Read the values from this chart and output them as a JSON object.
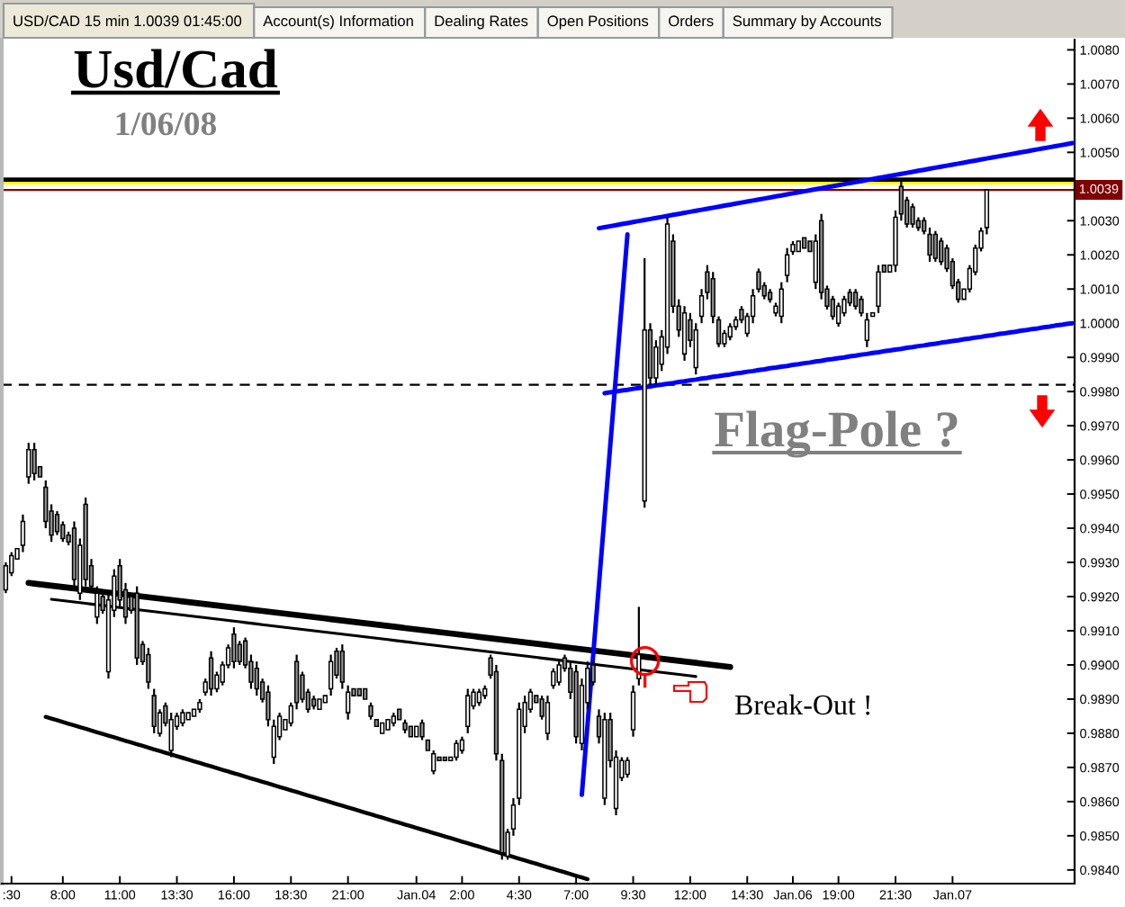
{
  "chart_data": {
    "type": "candlestick",
    "title": "Usd/Cad",
    "subtitle": "1/06/08",
    "annotations": [
      "USD/CAD 15 min 1.0039 01:45:00",
      "Account(s) Information",
      "Dealing Rates",
      "Open Positions",
      "Orders",
      "Summary by Accounts",
      "Flag-Pole ?",
      "Break-Out !"
    ],
    "categories": [
      null,
      ":30",
      null,
      null,
      null,
      null,
      null,
      null,
      null,
      null,
      "8:00",
      null,
      null,
      null,
      null,
      null,
      null,
      null,
      null,
      null,
      "11:00",
      null,
      null,
      null,
      null,
      null,
      null,
      null,
      null,
      null,
      "13:30",
      null,
      null,
      null,
      null,
      null,
      null,
      null,
      null,
      null,
      "16:00",
      null,
      null,
      null,
      null,
      null,
      null,
      null,
      null,
      null,
      "18:30",
      null,
      null,
      null,
      null,
      null,
      null,
      null,
      null,
      null,
      "21:00",
      null,
      null,
      null,
      null,
      null,
      null,
      null,
      null,
      null,
      null,
      null,
      "Jan.04",
      null,
      null,
      null,
      null,
      null,
      null,
      null,
      "2:00",
      null,
      null,
      null,
      null,
      null,
      null,
      null,
      null,
      null,
      "4:30",
      null,
      null,
      null,
      null,
      null,
      null,
      null,
      null,
      null,
      "7:00",
      null,
      null,
      null,
      null,
      null,
      null,
      null,
      null,
      null,
      "9:30",
      null,
      null,
      null,
      null,
      null,
      null,
      null,
      null,
      null,
      "12:00",
      null,
      null,
      null,
      null,
      null,
      null,
      null,
      null,
      null,
      "14:30",
      null,
      null,
      null,
      null,
      null,
      null,
      null,
      "Jan.06",
      null,
      null,
      null,
      null,
      null,
      null,
      null,
      "19:00",
      null,
      null,
      null,
      null,
      null,
      null,
      null,
      null,
      null,
      "21:30",
      null,
      null,
      null,
      null,
      null,
      null,
      null,
      null,
      null,
      "Jan.07",
      null,
      null,
      null,
      null,
      null,
      null,
      null,
      null,
      null,
      null,
      null,
      null,
      null,
      null,
      null,
      null,
      null,
      null,
      null,
      null,
      null
    ],
    "ohlc": [
      [
        0.9922,
        0.993,
        0.9921,
        0.9929
      ],
      [
        0.9927,
        0.9933,
        0.9926,
        0.9932
      ],
      [
        0.9931,
        0.9934,
        0.9931,
        0.9934
      ],
      [
        0.9935,
        0.9944,
        0.9933,
        0.9942
      ],
      [
        0.9955,
        0.9965,
        0.9953,
        0.9963
      ],
      [
        0.9963,
        0.9965,
        0.9954,
        0.9956
      ],
      [
        0.9958,
        0.9958,
        0.9955,
        0.9955
      ],
      [
        0.9952,
        0.9954,
        0.994,
        0.9942
      ],
      [
        0.9945,
        0.9947,
        0.9936,
        0.9938
      ],
      [
        0.9944,
        0.9945,
        0.9938,
        0.9939
      ],
      [
        0.9941,
        0.9942,
        0.9936,
        0.9937
      ],
      [
        0.9938,
        0.9939,
        0.9935,
        0.9936
      ],
      [
        0.994,
        0.9942,
        0.9923,
        0.9925
      ],
      [
        0.9921,
        0.9937,
        0.9919,
        0.9935
      ],
      [
        0.9947,
        0.9949,
        0.9923,
        0.9925
      ],
      [
        0.9929,
        0.9931,
        0.9921,
        0.9923
      ],
      [
        0.9914,
        0.9923,
        0.9912,
        0.9921
      ],
      [
        0.992,
        0.9921,
        0.9915,
        0.9916
      ],
      [
        0.9898,
        0.9921,
        0.9896,
        0.9919
      ],
      [
        0.9916,
        0.9928,
        0.9914,
        0.9926
      ],
      [
        0.9929,
        0.9931,
        0.9917,
        0.9919
      ],
      [
        0.9922,
        0.9924,
        0.9912,
        0.9914
      ],
      [
        0.992,
        0.9921,
        0.9915,
        0.9916
      ],
      [
        0.9921,
        0.9923,
        0.99,
        0.9902
      ],
      [
        0.9906,
        0.9907,
        0.99,
        0.9901
      ],
      [
        0.9903,
        0.9905,
        0.9893,
        0.9895
      ],
      [
        0.9891,
        0.9893,
        0.988,
        0.9882
      ],
      [
        0.988,
        0.9887,
        0.9879,
        0.9886
      ],
      [
        0.9888,
        0.9889,
        0.9882,
        0.9883
      ],
      [
        0.9875,
        0.9886,
        0.9873,
        0.9884
      ],
      [
        0.9882,
        0.9886,
        0.9881,
        0.9885
      ],
      [
        0.9883,
        0.9887,
        0.9882,
        0.9886
      ],
      [
        0.9884,
        0.9886,
        0.9884,
        0.9886
      ],
      [
        0.9885,
        0.9887,
        0.9885,
        0.9887
      ],
      [
        0.9887,
        0.989,
        0.9886,
        0.9889
      ],
      [
        0.9892,
        0.9896,
        0.9891,
        0.9895
      ],
      [
        0.9902,
        0.9904,
        0.9891,
        0.9893
      ],
      [
        0.9893,
        0.9898,
        0.9892,
        0.9897
      ],
      [
        0.9895,
        0.9901,
        0.9894,
        0.99
      ],
      [
        0.99,
        0.9906,
        0.9899,
        0.9905
      ],
      [
        0.9909,
        0.9911,
        0.9899,
        0.9901
      ],
      [
        0.9906,
        0.9907,
        0.99,
        0.9901
      ],
      [
        0.9907,
        0.9908,
        0.9899,
        0.99
      ],
      [
        0.9901,
        0.9903,
        0.9893,
        0.9895
      ],
      [
        0.9899,
        0.9901,
        0.9891,
        0.9893
      ],
      [
        0.9895,
        0.9896,
        0.9889,
        0.989
      ],
      [
        0.9892,
        0.9894,
        0.9882,
        0.9884
      ],
      [
        0.9873,
        0.9884,
        0.9871,
        0.9882
      ],
      [
        0.9879,
        0.9886,
        0.9878,
        0.9885
      ],
      [
        0.9881,
        0.9884,
        0.9881,
        0.9884
      ],
      [
        0.9883,
        0.9889,
        0.9882,
        0.9888
      ],
      [
        0.9901,
        0.9903,
        0.9887,
        0.9889
      ],
      [
        0.9897,
        0.9898,
        0.9889,
        0.989
      ],
      [
        0.9892,
        0.9893,
        0.9886,
        0.9887
      ],
      [
        0.989,
        0.9891,
        0.9887,
        0.9888
      ],
      [
        0.9887,
        0.989,
        0.9887,
        0.989
      ],
      [
        0.9889,
        0.9891,
        0.9889,
        0.9891
      ],
      [
        0.9893,
        0.9903,
        0.9891,
        0.9901
      ],
      [
        0.9904,
        0.9905,
        0.9896,
        0.9897
      ],
      [
        0.9904,
        0.9906,
        0.9893,
        0.9895
      ],
      [
        0.9886,
        0.9894,
        0.9884,
        0.9892
      ],
      [
        0.9893,
        0.9893,
        0.9891,
        0.9891
      ],
      [
        0.9893,
        0.9893,
        0.9891,
        0.9891
      ],
      [
        0.9893,
        0.9893,
        0.989,
        0.989
      ],
      [
        0.9888,
        0.9889,
        0.9884,
        0.9885
      ],
      [
        0.9884,
        0.9884,
        0.9882,
        0.9882
      ],
      [
        0.988,
        0.9883,
        0.988,
        0.9883
      ],
      [
        0.9881,
        0.9884,
        0.9881,
        0.9884
      ],
      [
        0.9883,
        0.9886,
        0.9882,
        0.9885
      ],
      [
        0.9887,
        0.9887,
        0.9884,
        0.9884
      ],
      [
        0.9883,
        0.9884,
        0.988,
        0.9881
      ],
      [
        0.9882,
        0.9882,
        0.9879,
        0.9879
      ],
      [
        0.9879,
        0.9882,
        0.9879,
        0.9882
      ],
      [
        0.9883,
        0.9884,
        0.9878,
        0.9879
      ],
      [
        0.9878,
        0.9878,
        0.9875,
        0.9875
      ],
      [
        0.9869,
        0.9875,
        0.9868,
        0.9874
      ],
      [
        0.9873,
        0.9873,
        0.9872,
        0.9872
      ],
      [
        0.9873,
        0.9873,
        0.9872,
        0.9872
      ],
      [
        0.9872,
        0.9873,
        0.9872,
        0.9873
      ],
      [
        0.9873,
        0.9878,
        0.9872,
        0.9877
      ],
      [
        0.9875,
        0.9879,
        0.9874,
        0.9878
      ],
      [
        0.9882,
        0.9893,
        0.988,
        0.9891
      ],
      [
        0.9888,
        0.9893,
        0.9887,
        0.9892
      ],
      [
        0.9889,
        0.9893,
        0.9888,
        0.9892
      ],
      [
        0.9891,
        0.9894,
        0.989,
        0.9893
      ],
      [
        0.9902,
        0.9903,
        0.9896,
        0.9897
      ],
      [
        0.9898,
        0.99,
        0.9872,
        0.9874
      ],
      [
        0.9872,
        0.9874,
        0.9843,
        0.9845
      ],
      [
        0.9844,
        0.9852,
        0.9843,
        0.9851
      ],
      [
        0.9852,
        0.9861,
        0.985,
        0.9859
      ],
      [
        0.9861,
        0.9889,
        0.9859,
        0.9887
      ],
      [
        0.9882,
        0.9891,
        0.988,
        0.9889
      ],
      [
        0.9887,
        0.9893,
        0.9886,
        0.9892
      ],
      [
        0.9891,
        0.9891,
        0.9889,
        0.9889
      ],
      [
        0.989,
        0.9891,
        0.9884,
        0.9885
      ],
      [
        0.988,
        0.9891,
        0.9878,
        0.9889
      ],
      [
        0.9894,
        0.9899,
        0.9893,
        0.9898
      ],
      [
        0.9895,
        0.9901,
        0.9894,
        0.99
      ],
      [
        0.9902,
        0.9903,
        0.9898,
        0.9899
      ],
      [
        0.9899,
        0.9901,
        0.989,
        0.9892
      ],
      [
        0.9898,
        0.99,
        0.9877,
        0.9879
      ],
      [
        0.9877,
        0.9896,
        0.9875,
        0.9894
      ],
      [
        0.9889,
        0.9901,
        0.9887,
        0.9899
      ],
      [
        0.99,
        0.9901,
        0.9894,
        0.9895
      ],
      [
        0.9885,
        0.9887,
        0.9877,
        0.9879
      ],
      [
        0.9861,
        0.9886,
        0.9859,
        0.9884
      ],
      [
        0.9884,
        0.9886,
        0.987,
        0.9872
      ],
      [
        0.9858,
        0.9875,
        0.9856,
        0.9873
      ],
      [
        0.9867,
        0.9873,
        0.9866,
        0.9872
      ],
      [
        0.9868,
        0.9873,
        0.9867,
        0.9872
      ],
      [
        0.9881,
        0.9894,
        0.9879,
        0.9892
      ],
      [
        0.9896,
        0.9917,
        0.9894,
        0.9903
      ],
      [
        0.9948,
        1.0019,
        0.9946,
        0.9998
      ],
      [
        0.9998,
        1.0,
        0.9982,
        0.9984
      ],
      [
        0.9984,
        0.9995,
        0.9982,
        0.9993
      ],
      [
        0.9988,
        0.9998,
        0.9986,
        0.9996
      ],
      [
        0.9993,
        1.0031,
        0.9991,
        1.0029
      ],
      [
        1.0024,
        1.0026,
        1.0003,
        1.0005
      ],
      [
        1.0005,
        1.0007,
        0.9996,
        0.9998
      ],
      [
        0.9991,
        1.0005,
        0.9989,
        1.0003
      ],
      [
        1.0001,
        1.0003,
        0.9993,
        0.9995
      ],
      [
        0.9987,
        1.0,
        0.9985,
        0.9998
      ],
      [
        1.0002,
        1.001,
        1.0,
        1.0008
      ],
      [
        1.0015,
        1.0017,
        1.0007,
        1.0009
      ],
      [
        1.0013,
        1.0015,
        1.0,
        1.0002
      ],
      [
        1.0001,
        1.0002,
        0.9993,
        0.9994
      ],
      [
        0.9994,
        0.9998,
        0.9993,
        0.9997
      ],
      [
        0.9996,
        1.0,
        0.9995,
        0.9999
      ],
      [
        0.9999,
        1.0002,
        0.9998,
        1.0001
      ],
      [
        1.0004,
        1.0005,
        1.0,
        1.0001
      ],
      [
        0.9997,
        1.0003,
        0.9996,
        1.0002
      ],
      [
        1.0002,
        1.001,
        1.0,
        1.0008
      ],
      [
        1.0015,
        1.0016,
        1.0009,
        1.001
      ],
      [
        1.0011,
        1.0012,
        1.0007,
        1.0008
      ],
      [
        1.0009,
        1.001,
        1.0006,
        1.0007
      ],
      [
        1.0003,
        1.0006,
        1.0002,
        1.0005
      ],
      [
        1.0002,
        1.0012,
        1.0,
        1.001
      ],
      [
        1.0014,
        1.0022,
        1.0012,
        1.002
      ],
      [
        1.0021,
        1.0024,
        1.002,
        1.0023
      ],
      [
        1.0021,
        1.0024,
        1.0021,
        1.0024
      ],
      [
        1.0025,
        1.0025,
        1.0022,
        1.0022
      ],
      [
        1.0024,
        1.0024,
        1.0021,
        1.0021
      ],
      [
        1.0012,
        1.0026,
        1.001,
        1.0024
      ],
      [
        1.003,
        1.0032,
        1.0007,
        1.0009
      ],
      [
        1.001,
        1.0011,
        1.0004,
        1.0005
      ],
      [
        1.0007,
        1.0008,
        1.0001,
        1.0002
      ],
      [
        1.0,
        1.0006,
        0.9999,
        1.0005
      ],
      [
        1.0003,
        1.0008,
        1.0002,
        1.0007
      ],
      [
        1.0009,
        1.001,
        1.0005,
        1.0006
      ],
      [
        1.0009,
        1.001,
        1.0004,
        1.0005
      ],
      [
        1.0007,
        1.0008,
        1.0002,
        1.0003
      ],
      [
        0.9995,
        1.0003,
        0.9993,
        1.0001
      ],
      [
        1.0002,
        1.0003,
        1.0002,
        1.0003
      ],
      [
        1.0005,
        1.0017,
        1.0003,
        1.0015
      ],
      [
        1.0017,
        1.0017,
        1.0015,
        1.0015
      ],
      [
        1.0015,
        1.0017,
        1.0015,
        1.0017
      ],
      [
        1.0017,
        1.0033,
        1.0015,
        1.0031
      ],
      [
        1.004,
        1.0042,
        1.003,
        1.0032
      ],
      [
        1.0036,
        1.0037,
        1.0028,
        1.0029
      ],
      [
        1.0034,
        1.0035,
        1.0028,
        1.0029
      ],
      [
        1.003,
        1.0031,
        1.0027,
        1.0028
      ],
      [
        1.003,
        1.0031,
        1.0026,
        1.0027
      ],
      [
        1.0026,
        1.0028,
        1.0018,
        1.002
      ],
      [
        1.0026,
        1.0027,
        1.0018,
        1.0019
      ],
      [
        1.0024,
        1.0025,
        1.0017,
        1.0018
      ],
      [
        1.0022,
        1.0023,
        1.0015,
        1.0016
      ],
      [
        1.0018,
        1.0019,
        1.001,
        1.0011
      ],
      [
        1.0012,
        1.0013,
        1.0006,
        1.0007
      ],
      [
        1.0007,
        1.001,
        1.0007,
        1.001
      ],
      [
        1.001,
        1.0017,
        1.0009,
        1.0016
      ],
      [
        1.0015,
        1.0023,
        1.0014,
        1.0022
      ],
      [
        1.0022,
        1.0028,
        1.0021,
        1.0027
      ],
      [
        1.0028,
        1.0039,
        1.0026,
        1.0039
      ],
      null,
      null,
      null,
      null,
      null,
      null,
      null,
      null,
      null,
      null,
      null,
      null,
      null,
      null,
      null
    ],
    "series": [
      {
        "type": "line",
        "color": "#000000",
        "values": [
          null,
          null,
          null,
          null,
          0.9924,
          0.99238,
          0.99236,
          0.99234,
          0.99232,
          0.9923,
          0.99228,
          0.99226,
          0.99224,
          0.99222,
          0.9922,
          0.99218,
          0.99216,
          0.99214,
          0.99212,
          0.9921,
          0.99208,
          0.99206,
          0.99204,
          0.99202,
          0.992,
          0.99198,
          0.99196,
          0.99194,
          0.99192,
          0.9919,
          0.99188,
          0.99186,
          0.99184,
          0.99182,
          0.9918,
          0.99178,
          0.99176,
          0.99174,
          0.99172,
          0.9917,
          0.99168,
          0.99166,
          0.99164,
          0.99162,
          0.9916,
          0.99158,
          0.99156,
          0.99154,
          0.99152,
          0.9915,
          0.99148,
          0.99146,
          0.99144,
          0.99142,
          0.9914,
          0.99138,
          0.99136,
          0.99134,
          0.99132,
          0.9913,
          0.99128,
          0.99126,
          0.99124,
          0.99122,
          0.9912,
          0.99118,
          0.99116,
          0.99114,
          0.99112,
          0.9911,
          0.99108,
          0.99106,
          0.99104,
          0.99102,
          0.991,
          0.99098,
          0.99096,
          0.99094,
          0.99092,
          0.9909,
          0.99088,
          0.99086,
          0.99084,
          0.99082,
          0.9908,
          0.99078,
          0.99076,
          0.99074,
          0.99072,
          0.9907,
          0.99068,
          0.99066,
          0.99064,
          0.99062,
          0.9906,
          0.99058,
          0.99056,
          0.99054,
          0.99052,
          0.9905,
          0.99048,
          0.99046,
          0.99044,
          0.99042,
          0.9904,
          0.99038,
          0.99036,
          0.99034,
          0.99032,
          0.9903,
          0.99028,
          0.99026,
          0.99024,
          0.99022,
          0.9902,
          0.99018,
          0.99016,
          0.99014,
          0.99012,
          0.9901,
          0.99008,
          0.99006,
          0.99004,
          0.99002,
          0.99,
          0.98998,
          0.98996,
          0.98994,
          null,
          null,
          null,
          null,
          null,
          null,
          null,
          null,
          null,
          null,
          null,
          null,
          null,
          null,
          null,
          null,
          null,
          null,
          null,
          null,
          null,
          null,
          null,
          null,
          null,
          null,
          null,
          null,
          null,
          null,
          null,
          null,
          null,
          null,
          null,
          null,
          null,
          null,
          null,
          null,
          null,
          null,
          null,
          null,
          null,
          null,
          null,
          null,
          null,
          null,
          null,
          null,
          null,
          null,
          null,
          null,
          null,
          null,
          null,
          null
        ]
      },
      {
        "type": "line",
        "color": "#000000",
        "values": [
          null,
          null,
          null,
          null,
          null,
          null,
          null,
          null,
          0.99192,
          0.9919,
          0.99188,
          0.99186,
          0.99184,
          0.99182,
          0.9918,
          0.99178,
          0.99176,
          0.99174,
          0.99172,
          0.9917,
          0.99168,
          0.99166,
          0.99164,
          0.99162,
          0.9916,
          0.99158,
          0.99156,
          0.99154,
          0.99152,
          0.9915,
          0.99148,
          0.99146,
          0.99144,
          0.99142,
          0.9914,
          0.99138,
          0.99136,
          0.99134,
          0.99132,
          0.9913,
          0.99128,
          0.99126,
          0.99124,
          0.99122,
          0.9912,
          0.99118,
          0.99116,
          0.99114,
          0.99112,
          0.9911,
          0.99108,
          0.99106,
          0.99104,
          0.99102,
          0.991,
          0.99098,
          0.99096,
          0.99094,
          0.99092,
          0.9909,
          0.99088,
          0.99086,
          0.99084,
          0.99082,
          0.9908,
          0.99078,
          0.99076,
          0.99074,
          0.99072,
          0.9907,
          0.99068,
          0.99066,
          0.99064,
          0.99062,
          0.9906,
          0.99058,
          0.99056,
          0.99054,
          0.99052,
          0.9905,
          0.99048,
          0.99046,
          0.99044,
          0.99042,
          0.9904,
          0.99038,
          0.99036,
          0.99034,
          0.99032,
          0.9903,
          0.99028,
          0.99026,
          0.99024,
          0.99022,
          0.9902,
          0.99018,
          0.99016,
          0.99014,
          0.99012,
          0.9901,
          0.99008,
          0.99006,
          0.99004,
          0.99002,
          0.99,
          0.98998,
          0.98996,
          0.98994,
          0.98992,
          0.9899,
          0.98988,
          0.98986,
          0.98984,
          0.98982,
          0.9898,
          0.98978,
          0.98976,
          0.98974,
          0.98972,
          0.9897,
          0.98968,
          0.98966,
          null,
          null,
          null,
          null,
          null,
          null,
          null,
          null,
          null,
          null,
          null,
          null,
          null,
          null,
          null,
          null,
          null,
          null,
          null,
          null,
          null,
          null,
          null,
          null,
          null,
          null,
          null,
          null,
          null,
          null,
          null,
          null,
          null,
          null,
          null,
          null,
          null,
          null,
          null,
          null,
          null,
          null,
          null,
          null,
          null,
          null,
          null,
          null,
          null,
          null,
          null,
          null,
          null,
          null,
          null,
          null,
          null,
          null,
          null,
          null,
          null,
          null,
          null,
          null,
          null,
          null
        ]
      },
      {
        "type": "line",
        "color": "#000000",
        "values": [
          null,
          null,
          null,
          null,
          null,
          null,
          null,
          0.98848,
          0.98843,
          0.98838,
          0.98833,
          0.98828,
          0.98823,
          0.98818,
          0.98813,
          0.98808,
          0.98803,
          0.98798,
          0.98793,
          0.98788,
          0.98783,
          0.98778,
          0.98773,
          0.98768,
          0.98763,
          0.98758,
          0.98753,
          0.98748,
          0.98743,
          0.98738,
          0.98733,
          0.98728,
          0.98723,
          0.98718,
          0.98713,
          0.98708,
          0.98703,
          0.98698,
          0.98693,
          0.98688,
          0.98683,
          0.98678,
          0.98673,
          0.98668,
          0.98663,
          0.98658,
          0.98653,
          0.98648,
          0.98643,
          0.98638,
          0.98633,
          0.98628,
          0.98623,
          0.98618,
          0.98613,
          0.98608,
          0.98603,
          0.98598,
          0.98593,
          0.98588,
          0.98583,
          0.98578,
          0.98573,
          0.98568,
          0.98563,
          0.98558,
          0.98553,
          0.98548,
          0.98543,
          0.98538,
          0.98533,
          0.98528,
          0.98523,
          0.98518,
          0.98513,
          0.98508,
          0.98503,
          0.98498,
          0.98493,
          0.98488,
          0.98483,
          0.98478,
          0.98473,
          0.98468,
          0.98463,
          0.98458,
          0.98453,
          0.98448,
          0.98443,
          0.98438,
          0.98433,
          0.98428,
          0.98423,
          0.98418,
          0.98413,
          0.98408,
          0.98403,
          0.98398,
          0.98393,
          0.98388,
          0.98383,
          0.98378,
          0.98373,
          null,
          null,
          null,
          null,
          null,
          null,
          null,
          null,
          null,
          null,
          null,
          null,
          null,
          null,
          null,
          null,
          null,
          null,
          null,
          null,
          null,
          null,
          null,
          null,
          null,
          null,
          null,
          null,
          null,
          null,
          null,
          null,
          null,
          null,
          null,
          null,
          null,
          null,
          null,
          null,
          null,
          null,
          null,
          null,
          null,
          null,
          null,
          null,
          null,
          null,
          null,
          null,
          null,
          null,
          null,
          null,
          null,
          null,
          null,
          null,
          null,
          null,
          null,
          null,
          null,
          null,
          null,
          null,
          null,
          null,
          null,
          null,
          null,
          null,
          null,
          null,
          null,
          null,
          null,
          null,
          null,
          null,
          null,
          null,
          null
        ]
      },
      {
        "type": "line",
        "color": "#0000ff",
        "values": [
          null,
          null,
          null,
          null,
          null,
          null,
          null,
          null,
          null,
          null,
          null,
          null,
          null,
          null,
          null,
          null,
          null,
          null,
          null,
          null,
          null,
          null,
          null,
          null,
          null,
          null,
          null,
          null,
          null,
          null,
          null,
          null,
          null,
          null,
          null,
          null,
          null,
          null,
          null,
          null,
          null,
          null,
          null,
          null,
          null,
          null,
          null,
          null,
          null,
          null,
          null,
          null,
          null,
          null,
          null,
          null,
          null,
          null,
          null,
          null,
          null,
          null,
          null,
          null,
          null,
          null,
          null,
          null,
          null,
          null,
          null,
          null,
          null,
          null,
          null,
          null,
          null,
          null,
          null,
          null,
          null,
          null,
          null,
          null,
          null,
          null,
          null,
          null,
          null,
          null,
          null,
          null,
          null,
          null,
          null,
          null,
          null,
          null,
          null,
          null,
          null,
          0.9862,
          0.98825,
          0.9903,
          0.99235,
          0.9944,
          0.99645,
          0.9985,
          1.00055,
          1.0026,
          null,
          null,
          null,
          null,
          null,
          null,
          null,
          null,
          null,
          null,
          null,
          null,
          null,
          null,
          null,
          null,
          null,
          null,
          null,
          null,
          null,
          null,
          null,
          null,
          null,
          null,
          null,
          null,
          null,
          null,
          null,
          null,
          null,
          null,
          null,
          null,
          null,
          null,
          null,
          null,
          null,
          null,
          null,
          null,
          null,
          null,
          null,
          null,
          null,
          null,
          null,
          null,
          null,
          null,
          null,
          null,
          null,
          null,
          null,
          null,
          null,
          null,
          null,
          null,
          null,
          null,
          null,
          null,
          null,
          null,
          null,
          null,
          null,
          null,
          null,
          null,
          null,
          null
        ]
      },
      {
        "type": "line",
        "color": "#0000ff",
        "values": [
          null,
          null,
          null,
          null,
          null,
          null,
          null,
          null,
          null,
          null,
          null,
          null,
          null,
          null,
          null,
          null,
          null,
          null,
          null,
          null,
          null,
          null,
          null,
          null,
          null,
          null,
          null,
          null,
          null,
          null,
          null,
          null,
          null,
          null,
          null,
          null,
          null,
          null,
          null,
          null,
          null,
          null,
          null,
          null,
          null,
          null,
          null,
          null,
          null,
          null,
          null,
          null,
          null,
          null,
          null,
          null,
          null,
          null,
          null,
          null,
          null,
          null,
          null,
          null,
          null,
          null,
          null,
          null,
          null,
          null,
          null,
          null,
          null,
          null,
          null,
          null,
          null,
          null,
          null,
          null,
          null,
          null,
          null,
          null,
          null,
          null,
          null,
          null,
          null,
          null,
          null,
          null,
          null,
          null,
          null,
          null,
          null,
          null,
          null,
          null,
          null,
          null,
          null,
          null,
          1.00278,
          1.00281,
          1.00284,
          1.00287,
          1.0029,
          1.00293,
          1.00296,
          1.00299,
          1.00302,
          1.00305,
          1.00308,
          1.00311,
          1.00314,
          1.00317,
          1.0032,
          1.00323,
          1.00326,
          1.00329,
          1.00332,
          1.00335,
          1.00338,
          1.00341,
          1.00344,
          1.00347,
          1.0035,
          1.00353,
          1.00356,
          1.00359,
          1.00362,
          1.00365,
          1.00368,
          1.00371,
          1.00374,
          1.00377,
          1.0038,
          1.00383,
          1.00386,
          1.00389,
          1.00392,
          1.00395,
          1.00398,
          1.00401,
          1.00404,
          1.00407,
          1.0041,
          1.00413,
          1.00416,
          1.00419,
          1.00422,
          1.00425,
          1.00428,
          1.00431,
          1.00434,
          1.00437,
          1.0044,
          1.00443,
          1.00446,
          1.00449,
          1.00452,
          1.00455,
          1.00458,
          1.00461,
          1.00464,
          1.00467,
          1.0047,
          1.00473,
          1.00476,
          1.00479,
          1.00482,
          1.00485,
          1.00488,
          1.00491,
          1.00494,
          1.00497,
          1.005,
          1.00503,
          1.00506,
          1.00509,
          1.00512,
          1.00515,
          1.00518,
          1.00521,
          1.00524,
          1.00527
        ]
      },
      {
        "type": "line",
        "color": "#0000ff",
        "values": [
          null,
          null,
          null,
          null,
          null,
          null,
          null,
          null,
          null,
          null,
          null,
          null,
          null,
          null,
          null,
          null,
          null,
          null,
          null,
          null,
          null,
          null,
          null,
          null,
          null,
          null,
          null,
          null,
          null,
          null,
          null,
          null,
          null,
          null,
          null,
          null,
          null,
          null,
          null,
          null,
          null,
          null,
          null,
          null,
          null,
          null,
          null,
          null,
          null,
          null,
          null,
          null,
          null,
          null,
          null,
          null,
          null,
          null,
          null,
          null,
          null,
          null,
          null,
          null,
          null,
          null,
          null,
          null,
          null,
          null,
          null,
          null,
          null,
          null,
          null,
          null,
          null,
          null,
          null,
          null,
          null,
          null,
          null,
          null,
          null,
          null,
          null,
          null,
          null,
          null,
          null,
          null,
          null,
          null,
          null,
          null,
          null,
          null,
          null,
          null,
          null,
          null,
          null,
          null,
          null,
          0.99795,
          0.99798,
          0.998,
          0.99803,
          0.99805,
          0.99808,
          0.9981,
          0.99813,
          0.99815,
          0.99818,
          0.9982,
          0.99823,
          0.99825,
          0.99828,
          0.9983,
          0.99833,
          0.99835,
          0.99838,
          0.9984,
          0.99843,
          0.99845,
          0.99848,
          0.9985,
          0.99853,
          0.99855,
          0.99858,
          0.9986,
          0.99863,
          0.99865,
          0.99868,
          0.9987,
          0.99873,
          0.99875,
          0.99878,
          0.9988,
          0.99883,
          0.99885,
          0.99888,
          0.9989,
          0.99893,
          0.99895,
          0.99898,
          0.999,
          0.99903,
          0.99905,
          0.99908,
          0.9991,
          0.99913,
          0.99915,
          0.99918,
          0.9992,
          0.99923,
          0.99925,
          0.99928,
          0.9993,
          0.99933,
          0.99935,
          0.99938,
          0.9994,
          0.99943,
          0.99945,
          0.99948,
          0.9995,
          0.99953,
          0.99955,
          0.99958,
          0.9996,
          0.99963,
          0.99965,
          0.99968,
          0.9997,
          0.99973,
          0.99975,
          0.99978,
          0.9998,
          0.99983,
          0.99985,
          0.99988,
          0.9999,
          0.99993,
          0.99995,
          0.99998,
          1.0
        ]
      }
    ],
    "ref_lines": [
      {
        "axis": "y",
        "value": 1.0042,
        "color": "#000000"
      },
      {
        "axis": "y",
        "value": 1.0041,
        "color": "#ffff00"
      },
      {
        "axis": "y",
        "value": 1.0039,
        "label": "1.0039",
        "color": "#800000"
      },
      {
        "axis": "y",
        "value": 0.9982,
        "color": "#000000",
        "line_style": "dashed"
      }
    ],
    "ylim": [
      0.9836,
      1.0083
    ],
    "yticks": [
      {
        "value": 1.008,
        "label": "1.0080"
      },
      {
        "value": 1.007,
        "label": "1.0070"
      },
      {
        "value": 1.006,
        "label": "1.0060"
      },
      {
        "value": 1.005,
        "label": "1.0050"
      },
      {
        "value": 1.003,
        "label": "1.0030"
      },
      {
        "value": 1.002,
        "label": "1.0020"
      },
      {
        "value": 1.001,
        "label": "1.0010"
      },
      {
        "value": 1.0,
        "label": "1.0000"
      },
      {
        "value": 0.999,
        "label": "0.9990"
      },
      {
        "value": 0.998,
        "label": "0.9980"
      },
      {
        "value": 0.997,
        "label": "0.9970"
      },
      {
        "value": 0.996,
        "label": "0.9960"
      },
      {
        "value": 0.995,
        "label": "0.9950"
      },
      {
        "value": 0.994,
        "label": "0.9940"
      },
      {
        "value": 0.993,
        "label": "0.9930"
      },
      {
        "value": 0.992,
        "label": "0.9920"
      },
      {
        "value": 0.991,
        "label": "0.9910"
      },
      {
        "value": 0.99,
        "label": "0.9900"
      },
      {
        "value": 0.989,
        "label": "0.9890"
      },
      {
        "value": 0.988,
        "label": "0.9880"
      },
      {
        "value": 0.987,
        "label": "0.9870"
      },
      {
        "value": 0.986,
        "label": "0.9860"
      },
      {
        "value": 0.985,
        "label": "0.9850"
      },
      {
        "value": 0.984,
        "label": "0.9840"
      }
    ]
  }
}
